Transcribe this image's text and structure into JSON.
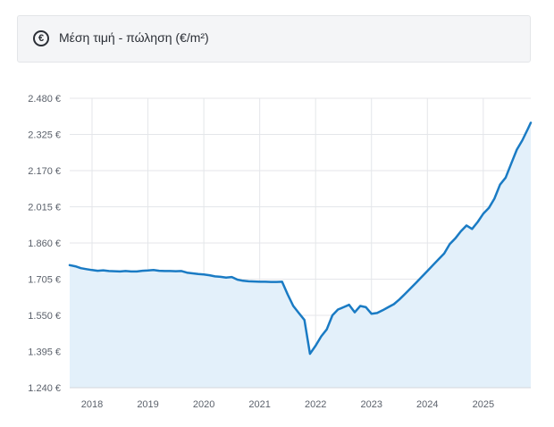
{
  "header": {
    "icon": "euro-icon",
    "icon_glyph": "€",
    "title": "Μέση τιμή - πώληση (€/m²)"
  },
  "colors": {
    "line": "#1a7bc4",
    "fill": "#e3f0fa",
    "grid": "#e4e6ea"
  },
  "chart_data": {
    "type": "area",
    "title": "Μέση τιμή - πώληση (€/m²)",
    "xlabel": "",
    "ylabel": "",
    "ylim": [
      1240,
      2480
    ],
    "y_ticks": [
      1240,
      1395,
      1550,
      1705,
      1860,
      2015,
      2170,
      2325,
      2480
    ],
    "y_tick_labels": [
      "1.240 €",
      "1.395 €",
      "1.550 €",
      "1.705 €",
      "1.860 €",
      "2.015 €",
      "2.170 €",
      "2.325 €",
      "2.480 €"
    ],
    "x_ticks": [
      2018,
      2019,
      2020,
      2021,
      2022,
      2023,
      2024,
      2025
    ],
    "x_tick_labels": [
      "2018",
      "2019",
      "2020",
      "2021",
      "2022",
      "2023",
      "2024",
      "2025"
    ],
    "xlim": [
      2017.6,
      2025.85
    ],
    "grid": true,
    "legend": "none",
    "series": [
      {
        "x": [
          2017.6,
          2017.7,
          2017.8,
          2017.9,
          2018.0,
          2018.1,
          2018.2,
          2018.3,
          2018.4,
          2018.5,
          2018.6,
          2018.7,
          2018.8,
          2018.9,
          2019.0,
          2019.1,
          2019.2,
          2019.3,
          2019.4,
          2019.5,
          2019.6,
          2019.7,
          2019.8,
          2019.9,
          2020.0,
          2020.1,
          2020.2,
          2020.3,
          2020.4,
          2020.5,
          2020.6,
          2020.7,
          2020.8,
          2020.9,
          2021.0,
          2021.1,
          2021.2,
          2021.3,
          2021.4,
          2021.5,
          2021.6,
          2021.7,
          2021.8,
          2021.9,
          2022.0,
          2022.1,
          2022.2,
          2022.3,
          2022.4,
          2022.5,
          2022.6,
          2022.7,
          2022.8,
          2022.9,
          2023.0,
          2023.1,
          2023.2,
          2023.3,
          2023.4,
          2023.5,
          2023.6,
          2023.7,
          2023.8,
          2023.9,
          2024.0,
          2024.1,
          2024.2,
          2024.3,
          2024.4,
          2024.5,
          2024.6,
          2024.7,
          2024.8,
          2024.9,
          2025.0,
          2025.1,
          2025.2,
          2025.3,
          2025.4,
          2025.5,
          2025.6,
          2025.7,
          2025.8,
          2025.85
        ],
        "values": [
          1765,
          1760,
          1752,
          1748,
          1744,
          1741,
          1743,
          1740,
          1739,
          1738,
          1740,
          1738,
          1738,
          1741,
          1742,
          1744,
          1741,
          1740,
          1740,
          1739,
          1740,
          1733,
          1730,
          1727,
          1725,
          1722,
          1717,
          1715,
          1712,
          1714,
          1703,
          1698,
          1696,
          1695,
          1694,
          1694,
          1693,
          1693,
          1694,
          1640,
          1590,
          1560,
          1530,
          1385,
          1420,
          1460,
          1490,
          1550,
          1575,
          1585,
          1595,
          1563,
          1590,
          1585,
          1557,
          1560,
          1572,
          1585,
          1598,
          1618,
          1642,
          1666,
          1690,
          1715,
          1740,
          1765,
          1790,
          1815,
          1855,
          1880,
          1910,
          1935,
          1920,
          1950,
          1985,
          2010,
          2050,
          2110,
          2140,
          2200,
          2260,
          2300,
          2350,
          2375
        ]
      }
    ]
  }
}
